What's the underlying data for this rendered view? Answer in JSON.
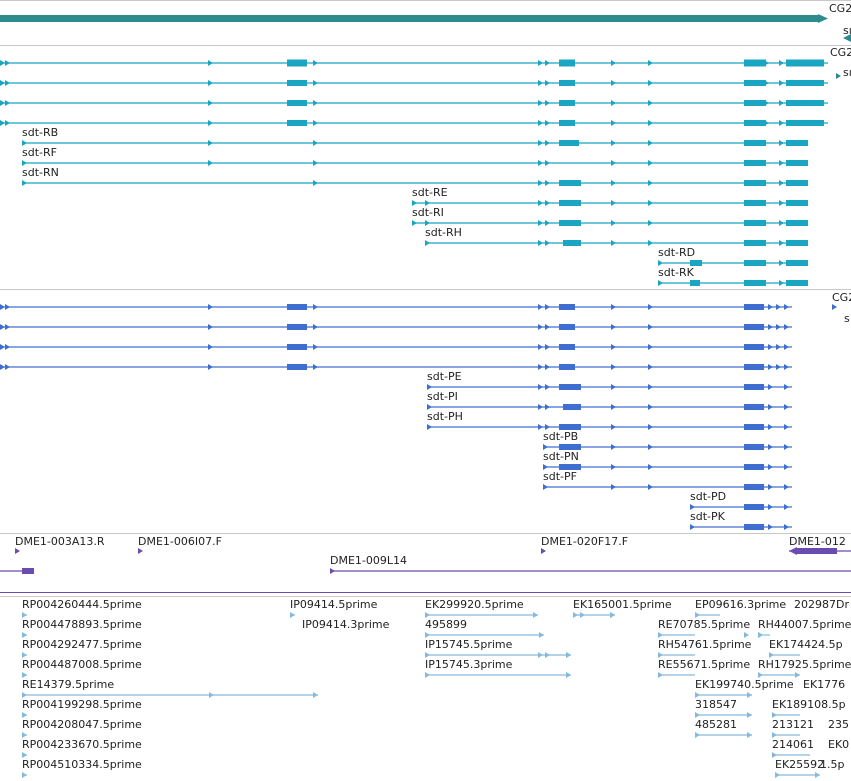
{
  "colors": {
    "gene": "#2f8b8b",
    "transcript": "#1aa5c2",
    "polypeptide": "#3e6fd0",
    "clone": "#6a4bb0",
    "est": "#86b9dc",
    "separator": "#c8c8c8"
  },
  "genes": {
    "labels": [
      {
        "text": "CG2"
      }
    ]
  },
  "transcripts": {
    "labels": [
      {
        "text": "sdt-RB"
      },
      {
        "text": "sdt-RF"
      },
      {
        "text": "sdt-RN"
      },
      {
        "text": "sdt-RE"
      },
      {
        "text": "sdt-RI"
      },
      {
        "text": "sdt-RH"
      },
      {
        "text": "sdt-RD"
      },
      {
        "text": "sdt-RK"
      },
      {
        "text": "CG2"
      },
      {
        "text": "sı"
      },
      {
        "text": "sı"
      }
    ]
  },
  "polypeptides": {
    "labels": [
      {
        "text": "sdt-PE"
      },
      {
        "text": "sdt-PI"
      },
      {
        "text": "sdt-PH"
      },
      {
        "text": "sdt-PB"
      },
      {
        "text": "sdt-PN"
      },
      {
        "text": "sdt-PF"
      },
      {
        "text": "sdt-PD"
      },
      {
        "text": "sdt-PK"
      },
      {
        "text": "CG2"
      },
      {
        "text": "s"
      }
    ]
  },
  "clones": {
    "labels": [
      {
        "text": "DME1-003A13.R"
      },
      {
        "text": "DME1-006I07.F"
      },
      {
        "text": "DME1-020F17.F"
      },
      {
        "text": "DME1-012"
      },
      {
        "text": "DME1-009L14"
      }
    ]
  },
  "ests": {
    "labels": [
      {
        "text": "RP004260444.5prime"
      },
      {
        "text": "RP004478893.5prime"
      },
      {
        "text": "RP004292477.5prime"
      },
      {
        "text": "RP004487008.5prime"
      },
      {
        "text": "RE14379.5prime"
      },
      {
        "text": "RP004199298.5prime"
      },
      {
        "text": "RP004208047.5prime"
      },
      {
        "text": "RP004233670.5prime"
      },
      {
        "text": "RP004510334.5prime"
      },
      {
        "text": "IP09414.5prime"
      },
      {
        "text": "IP09414.3prime"
      },
      {
        "text": "EK299920.5prime"
      },
      {
        "text": "495899"
      },
      {
        "text": "IP15745.5prime"
      },
      {
        "text": "IP15745.3prime"
      },
      {
        "text": "EK165001.5prime"
      },
      {
        "text": "EP09616.3prime"
      },
      {
        "text": "202987Dr"
      },
      {
        "text": "RE70785.5prime"
      },
      {
        "text": "RH44007.5prime"
      },
      {
        "text": "RH54761.5prime"
      },
      {
        "text": "EK174424.5p"
      },
      {
        "text": "RE55671.5prime"
      },
      {
        "text": "RH17925.5prime"
      },
      {
        "text": "EK199740.5prime"
      },
      {
        "text": "EK1776"
      },
      {
        "text": "318547"
      },
      {
        "text": "EK189108.5p"
      },
      {
        "text": "485281"
      },
      {
        "text": "213121"
      },
      {
        "text": "235"
      },
      {
        "text": "214061"
      },
      {
        "text": "EK0"
      },
      {
        "text": "EK25592"
      },
      {
        "text": "1.5p"
      }
    ]
  }
}
